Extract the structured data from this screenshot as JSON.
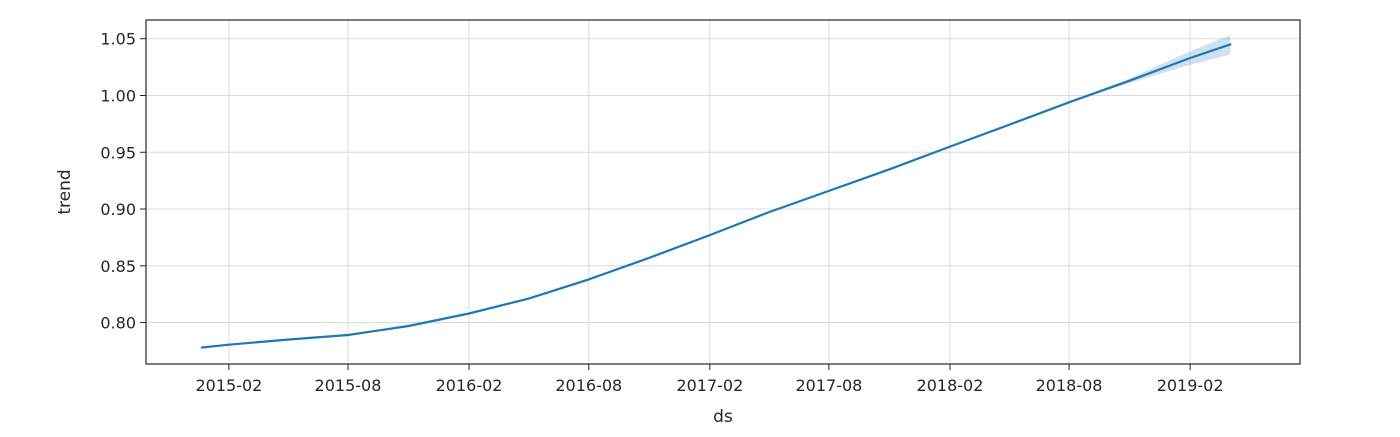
{
  "chart_data": {
    "type": "line",
    "title": "",
    "xlabel": "ds",
    "ylabel": "trend",
    "x_ticks": [
      "2015-02",
      "2015-08",
      "2016-02",
      "2016-08",
      "2017-02",
      "2017-08",
      "2018-02",
      "2018-08",
      "2019-02"
    ],
    "y_ticks": [
      0.8,
      0.85,
      0.9,
      0.95,
      1.0,
      1.05
    ],
    "y_tick_labels": [
      "0.80",
      "0.85",
      "0.90",
      "0.95",
      "1.00",
      "1.05"
    ],
    "xlim": [
      "2014-09-28",
      "2019-07-18"
    ],
    "ylim": [
      0.7635,
      1.0665
    ],
    "grid": true,
    "series": [
      {
        "color": "#1f77b4",
        "x": [
          "2014-12-22",
          "2015-02-01",
          "2015-05-01",
          "2015-08-01",
          "2015-11-01",
          "2016-02-01",
          "2016-05-01",
          "2016-08-01",
          "2016-11-01",
          "2017-02-01",
          "2017-05-01",
          "2017-08-01",
          "2017-11-01",
          "2018-02-01",
          "2018-05-01",
          "2018-08-01",
          "2018-11-01",
          "2019-02-01",
          "2019-04-03"
        ],
        "y": [
          0.778,
          0.7805,
          0.785,
          0.789,
          0.797,
          0.808,
          0.821,
          0.838,
          0.857,
          0.877,
          0.897,
          0.916,
          0.935,
          0.955,
          0.974,
          0.994,
          1.013,
          1.033,
          1.045
        ],
        "uncertainty": {
          "fill": "#1f77b4",
          "x": [
            "2018-08-01",
            "2018-11-01",
            "2019-02-01",
            "2019-04-03"
          ],
          "lower": [
            0.994,
            1.011,
            1.027,
            1.036
          ],
          "upper": [
            0.994,
            1.015,
            1.039,
            1.053
          ]
        }
      }
    ]
  }
}
